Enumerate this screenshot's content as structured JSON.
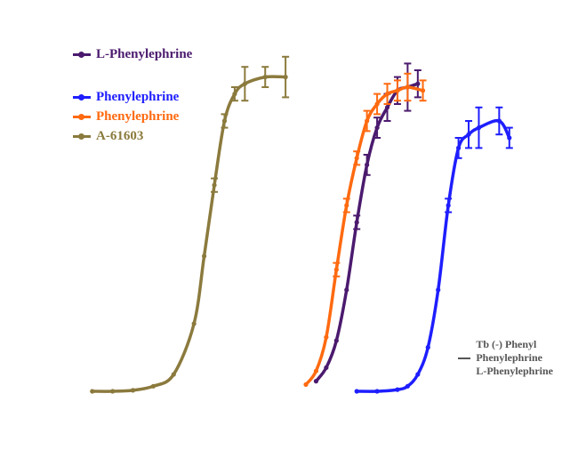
{
  "chart_data": {
    "type": "line",
    "title": "",
    "xlabel": "",
    "ylabel": "",
    "grid": false,
    "legend_position": "top-left",
    "xlim": [
      0,
      10
    ],
    "ylim": [
      0,
      100
    ],
    "colors": {
      "gold": "#8B7A3D",
      "purple": "#4B1A6E",
      "orange": "#FF6A10",
      "blue": "#1E1EFF"
    },
    "legend": [
      {
        "label": "L-Phenylephrine",
        "color": "#4B1A6E"
      },
      {
        "label": "Phenylephrine",
        "color": "#1E1EFF"
      },
      {
        "label": "Phenylephrine",
        "color": "#FF6A10"
      },
      {
        "label": "A-61603",
        "color": "#8B7A3D"
      }
    ],
    "series": [
      {
        "name": "A-61603",
        "color": "#8B7A3D",
        "x": [
          0.8,
          1.2,
          1.6,
          2.0,
          2.4,
          2.8,
          3.0,
          3.2,
          3.4,
          3.6,
          3.8,
          4.2,
          4.6
        ],
        "y": [
          0.0,
          0.0,
          0.3,
          1.5,
          5.0,
          20.0,
          40.0,
          61.0,
          80.0,
          88.0,
          91.0,
          93.0,
          93.0
        ],
        "err": [
          0,
          0,
          0,
          0,
          0,
          0,
          0,
          2,
          2,
          2,
          5,
          3,
          6
        ]
      },
      {
        "name": "L-Phenylephrine",
        "color": "#4B1A6E",
        "x": [
          5.2,
          5.4,
          5.6,
          5.8,
          6.0,
          6.2,
          6.4,
          6.6,
          6.8,
          7.0,
          7.2
        ],
        "y": [
          3.0,
          7.0,
          15.0,
          30.0,
          50.0,
          67.0,
          78.0,
          84.0,
          89.0,
          90.0,
          91.0
        ],
        "err": [
          0,
          0,
          0,
          0,
          2,
          3,
          3,
          4,
          4,
          7,
          4
        ]
      },
      {
        "name": "Phenylephrine",
        "color": "#FF6A10",
        "x": [
          5.0,
          5.2,
          5.4,
          5.6,
          5.8,
          6.0,
          6.2,
          6.4,
          6.6,
          6.8,
          7.0,
          7.3
        ],
        "y": [
          2.0,
          6.0,
          16.0,
          36.0,
          55.0,
          69.0,
          80.0,
          85.0,
          88.0,
          89.0,
          90.0,
          89.0
        ],
        "err": [
          0,
          0,
          0,
          2,
          2,
          2,
          3,
          3,
          3,
          3,
          4,
          3
        ]
      },
      {
        "name": "Phenylephrine",
        "color": "#1E1EFF",
        "x": [
          6.0,
          6.4,
          6.8,
          7.0,
          7.2,
          7.4,
          7.6,
          7.8,
          8.0,
          8.2,
          8.4,
          8.8,
          9.0
        ],
        "y": [
          0.0,
          0.0,
          0.5,
          1.5,
          5.0,
          13.0,
          30.0,
          55.0,
          72.0,
          76.0,
          78.0,
          80.0,
          75.0
        ],
        "err": [
          0,
          0,
          0,
          0,
          0,
          0,
          0,
          2,
          3,
          4,
          6,
          4,
          3
        ]
      }
    ]
  },
  "inset_legend": {
    "lines": [
      "Tb (-) Phenyl",
      "Phenylephrine",
      "L-Phenylephrine"
    ]
  }
}
